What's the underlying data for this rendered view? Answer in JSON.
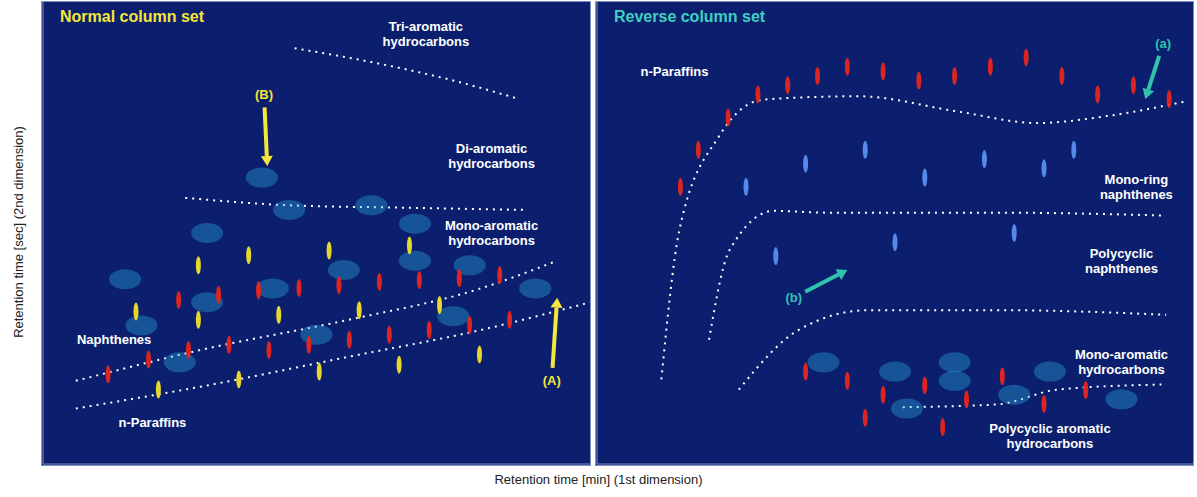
{
  "xlabel": "Retention time [min] (1st dimension)",
  "ylabel": "Retention time [sec] (2nd dimension)",
  "chart_data": [
    {
      "type": "scatter",
      "title": "Normal column set",
      "xlim": [
        0,
        100
      ],
      "ylim": [
        0,
        100
      ],
      "tick_labels": false,
      "grid": false,
      "series": [
        {
          "color": "#2fb8e6",
          "marker": "blob",
          "x": [
            18,
            30,
            42,
            55,
            68,
            78,
            30,
            45,
            60,
            68,
            25,
            50,
            75,
            90,
            15,
            40
          ],
          "y": [
            30,
            35,
            38,
            42,
            44,
            43,
            50,
            55,
            56,
            52,
            22,
            28,
            32,
            38,
            40,
            62
          ]
        },
        {
          "color": "#f2e22a",
          "marker": "streak",
          "x": [
            17,
            28.4,
            43.1,
            57.8,
            72.5,
            21.1,
            35.8,
            50.5,
            65.1,
            79.8,
            37.6,
            52.3,
            67,
            28.4
          ],
          "y": [
            33,
            31.2,
            32.3,
            33.3,
            34.4,
            16.1,
            18.3,
            20,
            21.5,
            23.7,
            45.2,
            46.2,
            47.3,
            43
          ]
        },
        {
          "color": "#e8261c",
          "marker": "streak",
          "x": [
            11.9,
            19.3,
            26.6,
            34,
            41.3,
            48.6,
            56,
            63.3,
            70.6,
            78,
            85.3,
            24.8,
            32.1,
            39.4,
            46.8,
            54.1,
            61.5,
            68.8,
            76.1,
            83.5
          ],
          "y": [
            19.4,
            22.6,
            24.7,
            25.8,
            24.7,
            25.8,
            26.9,
            28,
            29,
            30.1,
            31.2,
            35.5,
            36.6,
            37.6,
            38.1,
            38.7,
            39.4,
            39.8,
            40.2,
            40.9
          ]
        }
      ],
      "boundaries": [
        {
          "line_style": "dotted",
          "color": "#ffffff",
          "x": [
            6,
            30,
            55,
            80,
            100
          ],
          "y": [
            12,
            17,
            23,
            29,
            35
          ]
        },
        {
          "line_style": "dotted",
          "color": "#ffffff",
          "x": [
            6,
            30,
            55,
            80,
            94
          ],
          "y": [
            18,
            25,
            31,
            38,
            44
          ]
        },
        {
          "line_style": "dotted",
          "color": "#ffffff",
          "x": [
            26,
            45,
            65,
            88
          ],
          "y": [
            57.6,
            56,
            55.5,
            55
          ]
        },
        {
          "line_style": "dotted",
          "color": "#ffffff",
          "x": [
            46,
            60,
            75,
            87
          ],
          "y": [
            90,
            87,
            83,
            79
          ]
        }
      ],
      "annotations": [
        {
          "text": "Tri-aromatic hydrocarbons",
          "x": 70,
          "y": 93,
          "color": "#ffffff"
        },
        {
          "text": "Di-aromatic hydrocarbons",
          "x": 82,
          "y": 66.7,
          "color": "#ffffff"
        },
        {
          "text": "Mono-aromatic hydrocarbons",
          "x": 82,
          "y": 50,
          "color": "#ffffff"
        },
        {
          "text": "Naphthenes",
          "x": 13,
          "y": 27,
          "color": "#ffffff"
        },
        {
          "text": "n-Paraffins",
          "x": 20,
          "y": 9,
          "color": "#ffffff"
        },
        {
          "text": "(B)",
          "x": 40.4,
          "y": 80,
          "color": "#f5e63a",
          "arrow_to": [
            41,
            64.5
          ]
        },
        {
          "text": "(A)",
          "x": 93,
          "y": 18,
          "color": "#f5e63a",
          "arrow_to": [
            94,
            36
          ]
        }
      ]
    },
    {
      "type": "scatter",
      "title": "Reverse column set",
      "xlim": [
        0,
        100
      ],
      "ylim": [
        0,
        100
      ],
      "tick_labels": false,
      "grid": false,
      "series": [
        {
          "color": "#2fb8e6",
          "marker": "blob",
          "x": [
            38,
            50,
            60,
            70,
            76,
            88,
            52,
            60
          ],
          "y": [
            22,
            20,
            22,
            15,
            20,
            14,
            12,
            18
          ]
        },
        {
          "color": "#5a8ff0",
          "marker": "streak",
          "x": [
            25,
            35,
            45,
            55,
            65,
            75,
            80,
            30,
            50,
            70
          ],
          "y": [
            60,
            65,
            68,
            62,
            66,
            64,
            68,
            45,
            48,
            50
          ]
        },
        {
          "color": "#e8261c",
          "marker": "streak",
          "x": [
            14,
            17,
            22,
            27,
            32,
            37,
            42,
            48,
            54,
            60,
            66,
            72,
            78,
            84,
            90,
            96
          ],
          "y": [
            60,
            68,
            75,
            80,
            82,
            84,
            86,
            85,
            83,
            84,
            86,
            88,
            84,
            80,
            82,
            79
          ]
        },
        {
          "color": "#e8261c",
          "marker": "streak",
          "x": [
            35,
            42,
            48,
            55,
            62,
            68,
            75,
            82,
            45,
            58
          ],
          "y": [
            20,
            18,
            15,
            17,
            14,
            19,
            13,
            16,
            10,
            8
          ]
        }
      ],
      "boundaries": [
        {
          "line_style": "dotted",
          "color": "#ffffff",
          "x": [
            10.8,
            13.8,
            20.5,
            28,
            43.8,
            60.5,
            73.8,
            85.5,
            98.8
          ],
          "y": [
            18.3,
            50.5,
            71,
            78.9,
            79.6,
            76.3,
            73.8,
            75.3,
            78.5
          ]
        },
        {
          "line_style": "dotted",
          "color": "#ffffff",
          "x": [
            18.8,
            22.2,
            29.7,
            38.8,
            67.2,
            94.7
          ],
          "y": [
            26.9,
            46.2,
            54.8,
            54.4,
            54.4,
            53.8
          ]
        },
        {
          "line_style": "dotted",
          "color": "#ffffff",
          "x": [
            23.8,
            33.8,
            45.5,
            67.2,
            95.5
          ],
          "y": [
            16.1,
            29,
            33.3,
            33.3,
            32.3
          ]
        },
        {
          "line_style": "dotted",
          "color": "#ffffff",
          "x": [
            51.3,
            67.2,
            77.2,
            94.7
          ],
          "y": [
            12.3,
            12.9,
            16.1,
            17.2
          ]
        }
      ],
      "annotations": [
        {
          "text": "n-Paraffins",
          "x": 13,
          "y": 85,
          "color": "#ffffff"
        },
        {
          "text": "(a)",
          "x": 95,
          "y": 91,
          "color": "#2ec4b0",
          "arrow_to": [
            92,
            79
          ]
        },
        {
          "text": "Mono-ring naphthenes",
          "x": 90.5,
          "y": 60,
          "color": "#ffffff"
        },
        {
          "text": "Polycyclic naphthenes",
          "x": 88,
          "y": 44,
          "color": "#ffffff"
        },
        {
          "text": "Mono-aromatic hydrocarbons",
          "x": 88,
          "y": 22,
          "color": "#ffffff"
        },
        {
          "text": "Polycyclic aromatic hydrocarbons",
          "x": 76,
          "y": 6,
          "color": "#ffffff"
        },
        {
          "text": "(b)",
          "x": 33,
          "y": 36,
          "color": "#2ec4b0",
          "arrow_to": [
            42,
            42
          ]
        }
      ]
    }
  ]
}
